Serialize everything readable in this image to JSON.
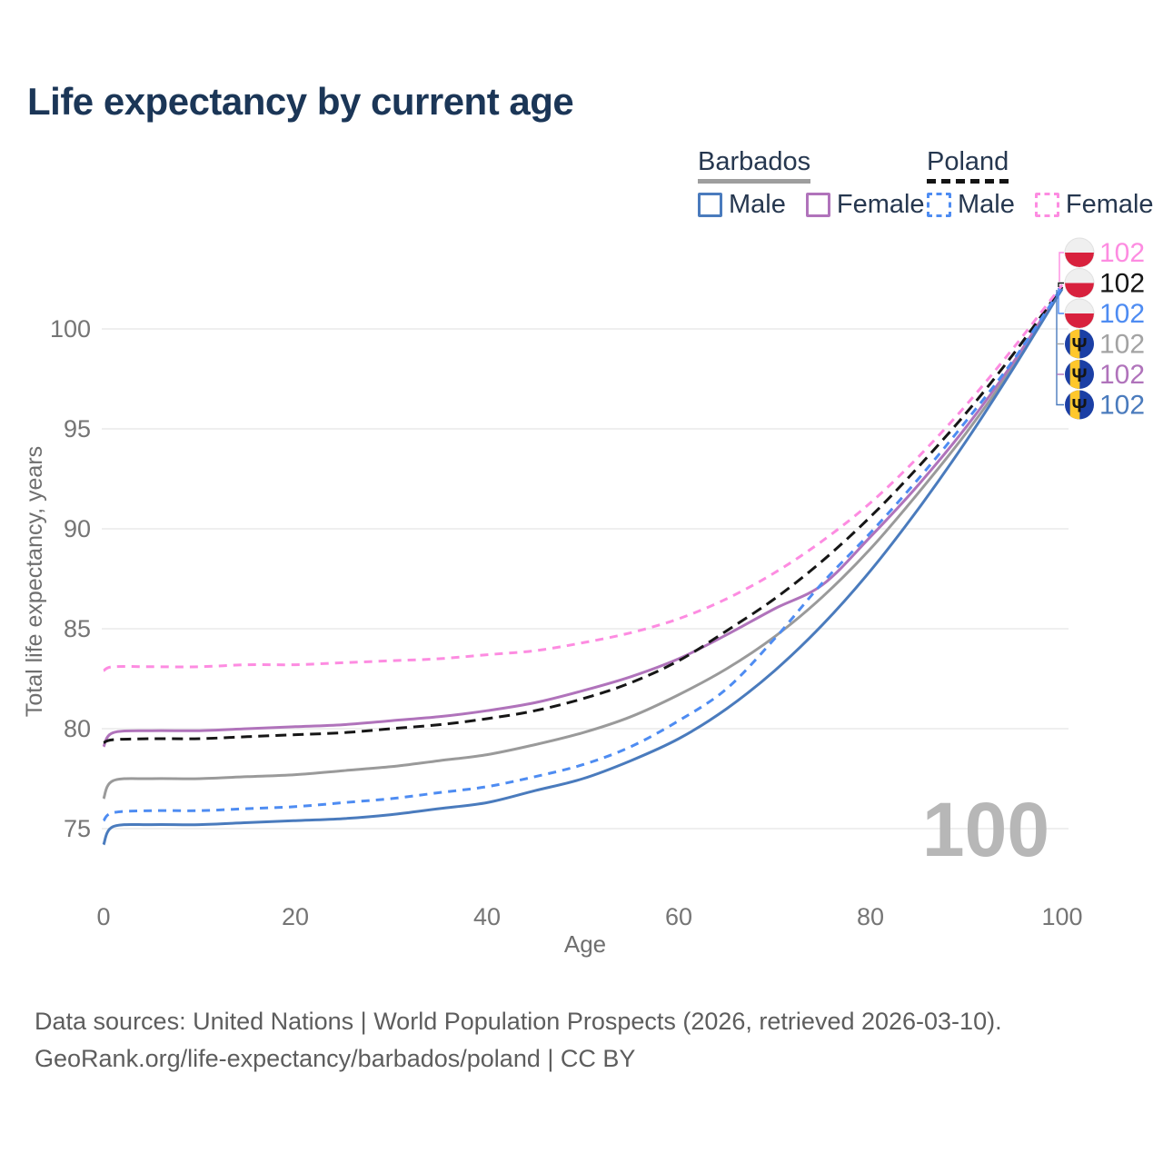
{
  "title": "Life expectancy by current age",
  "legend": {
    "groups": [
      {
        "label": "Barbados",
        "line_style": "solid",
        "underline_color": "#9e9e9e",
        "items": [
          {
            "label": "Male",
            "color": "#4a7bbd",
            "dashed": false
          },
          {
            "label": "Female",
            "color": "#b073bb",
            "dashed": false
          }
        ]
      },
      {
        "label": "Poland",
        "line_style": "dashed",
        "underline_color": "#141414",
        "items": [
          {
            "label": "Male",
            "color": "#4e8cf2",
            "dashed": true
          },
          {
            "label": "Female",
            "color": "#fd8ce1",
            "dashed": true
          }
        ]
      }
    ]
  },
  "watermark": "100",
  "chart_data": {
    "type": "line",
    "title": "Life expectancy by current age",
    "xlabel": "Age",
    "ylabel": "Total life expectancy, years",
    "xlim": [
      0,
      100
    ],
    "ylim": [
      73,
      103.5
    ],
    "xticks": [
      0,
      20,
      40,
      60,
      80,
      100
    ],
    "yticks": [
      75,
      80,
      85,
      90,
      95,
      100
    ],
    "grid": true,
    "legend_position": "top-right",
    "x": [
      0,
      1,
      5,
      10,
      15,
      20,
      25,
      30,
      35,
      40,
      45,
      50,
      55,
      60,
      65,
      70,
      75,
      80,
      85,
      90,
      95,
      100
    ],
    "series": [
      {
        "name": "Barbados (both sexes)",
        "country": "Barbados",
        "sex": "Both",
        "color": "#9a9a9a",
        "dash": "solid",
        "values": [
          76.5,
          77.4,
          77.5,
          77.5,
          77.6,
          77.7,
          77.9,
          78.1,
          78.4,
          78.7,
          79.2,
          79.8,
          80.6,
          81.7,
          83.0,
          84.6,
          86.6,
          89.0,
          91.8,
          94.8,
          98.2,
          102.0
        ]
      },
      {
        "name": "Barbados Female",
        "country": "Barbados",
        "sex": "Female",
        "color": "#b073bb",
        "dash": "solid",
        "values": [
          79.1,
          79.8,
          79.9,
          79.9,
          80.0,
          80.1,
          80.2,
          80.4,
          80.6,
          80.9,
          81.3,
          81.9,
          82.6,
          83.5,
          84.7,
          86.0,
          87.2,
          89.6,
          92.2,
          95.1,
          98.4,
          102.1
        ]
      },
      {
        "name": "Poland (both sexes)",
        "country": "Poland",
        "sex": "Both",
        "color": "#161616",
        "dash": "dashed",
        "values": [
          79.3,
          79.45,
          79.5,
          79.5,
          79.6,
          79.7,
          79.8,
          80.0,
          80.2,
          80.5,
          80.9,
          81.5,
          82.3,
          83.4,
          84.9,
          86.5,
          88.4,
          90.6,
          93.1,
          95.8,
          98.8,
          102.1
        ]
      },
      {
        "name": "Poland Female",
        "country": "Poland",
        "sex": "Female",
        "color": "#fd8ce1",
        "dash": "dashed",
        "values": [
          82.9,
          83.1,
          83.1,
          83.1,
          83.2,
          83.2,
          83.3,
          83.4,
          83.5,
          83.7,
          83.9,
          84.3,
          84.8,
          85.5,
          86.5,
          87.8,
          89.4,
          91.3,
          93.6,
          96.2,
          99.1,
          102.2
        ]
      },
      {
        "name": "Barbados Male",
        "country": "Barbados",
        "sex": "Male",
        "color": "#4a7bbd",
        "dash": "solid",
        "values": [
          74.2,
          75.1,
          75.2,
          75.2,
          75.3,
          75.4,
          75.5,
          75.7,
          76.0,
          76.3,
          76.9,
          77.5,
          78.4,
          79.5,
          81.0,
          82.9,
          85.2,
          87.9,
          91.0,
          94.4,
          98.1,
          102.0
        ]
      },
      {
        "name": "Poland Male",
        "country": "Poland",
        "sex": "Male",
        "color": "#4e8cf2",
        "dash": "dashed",
        "values": [
          75.4,
          75.8,
          75.9,
          75.9,
          76.0,
          76.1,
          76.3,
          76.5,
          76.8,
          77.1,
          77.6,
          78.2,
          79.1,
          80.4,
          82.0,
          84.5,
          87.3,
          89.8,
          92.5,
          95.4,
          98.5,
          102.1
        ]
      }
    ],
    "end_labels": [
      {
        "series": "Poland Female",
        "flag": "poland",
        "text": "102",
        "color": "#fd8ce1"
      },
      {
        "series": "Poland (both sexes)",
        "flag": "poland",
        "text": "102",
        "color": "#161616"
      },
      {
        "series": "Poland Male",
        "flag": "poland",
        "text": "102",
        "color": "#4e8cf2"
      },
      {
        "series": "Barbados (both sexes)",
        "flag": "barbados",
        "text": "102",
        "color": "#a3a3a3"
      },
      {
        "series": "Barbados Female",
        "flag": "barbados",
        "text": "102",
        "color": "#b073bb"
      },
      {
        "series": "Barbados Male",
        "flag": "barbados",
        "text": "102",
        "color": "#4a7bbd"
      }
    ]
  },
  "footer": {
    "line1": "Data sources: United Nations | World Population Prospects (2026, retrieved 2026-03-10).",
    "line2": "GeoRank.org/life-expectancy/barbados/poland | CC BY"
  }
}
